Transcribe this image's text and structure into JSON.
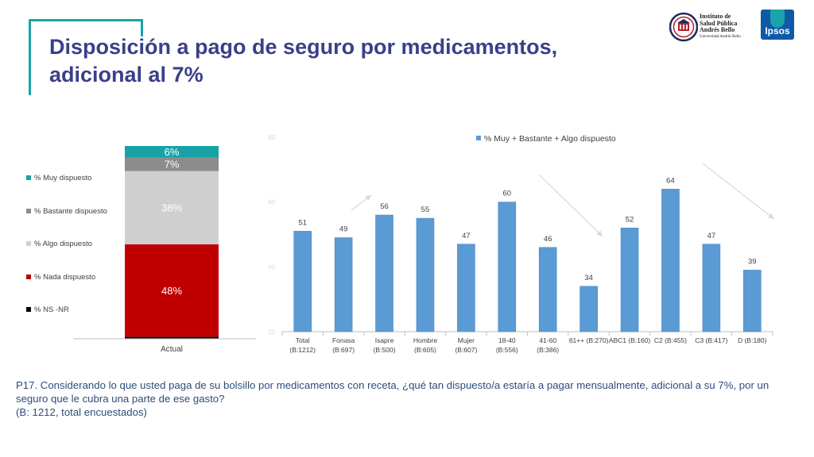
{
  "header": {
    "title_line1": "Disposición a pago de seguro por medicamentos,",
    "title_line2": "adicional al 7%"
  },
  "logos": {
    "institute_lines": [
      "Instituto de",
      "Salud Pública",
      "Andrés Bello"
    ],
    "institute_sub": "Universidad Andrés Bello",
    "ipsos": "Ipsos"
  },
  "footnote": {
    "question": "P17. Considerando lo que usted paga de su bolsillo por medicamentos con receta, ¿qué tan dispuesto/a estaría a pagar mensualmente, adicional a su 7%, por un seguro que le cubra una parte de ese gasto?",
    "base": "(B: 1212, total encuestados)"
  },
  "colors": {
    "muy": "#17a2a7",
    "bastante": "#8c8c8c",
    "algo": "#cfcfcf",
    "nada": "#c00000",
    "nsnr": "#000000",
    "bar": "#5b9bd5",
    "title": "#3a3f8a",
    "footnote": "#2d4d7a"
  },
  "chart_data": [
    {
      "type": "bar",
      "stacked": true,
      "categories": [
        "Actual"
      ],
      "series": [
        {
          "name": "% Muy dispuesto",
          "values": [
            6
          ],
          "label": "6%",
          "color": "#17a2a7"
        },
        {
          "name": "% Bastante dispuesto",
          "values": [
            7
          ],
          "label": "7%",
          "color": "#8c8c8c"
        },
        {
          "name": "% Algo dispuesto",
          "values": [
            38
          ],
          "label": "38%",
          "color": "#cfcfcf"
        },
        {
          "name": "% Nada dispuesto",
          "values": [
            48
          ],
          "label": "48%",
          "color": "#c00000"
        },
        {
          "name": "% NS -NR",
          "values": [
            1
          ],
          "label": "",
          "color": "#000000"
        }
      ],
      "ylim": [
        0,
        100
      ],
      "legend": "left"
    },
    {
      "type": "bar",
      "categories": [
        [
          "Total",
          "(B:1212)"
        ],
        [
          "Fonasa",
          "(B:697)"
        ],
        [
          "Isapre",
          "(B:500)"
        ],
        [
          "Hombre",
          "(B:605)"
        ],
        [
          "Mujer",
          "(B:607)"
        ],
        [
          "18-40",
          "(B:556)"
        ],
        [
          "41-60",
          "(B:386)"
        ],
        [
          "61++ (B:270)"
        ],
        [
          "ABC1 (B:160)"
        ],
        [
          "C2 (B:455)"
        ],
        [
          "C3 (B:417)"
        ],
        [
          "D       (B:180)"
        ]
      ],
      "series": [
        {
          "name": "% Muy + Bastante + Algo dispuesto",
          "values": [
            51,
            49,
            56,
            55,
            47,
            60,
            46,
            34,
            52,
            64,
            47,
            39
          ]
        }
      ],
      "y_ticks": [
        20,
        40,
        60,
        80
      ],
      "ylim": [
        20,
        80
      ],
      "legend": "top"
    }
  ]
}
